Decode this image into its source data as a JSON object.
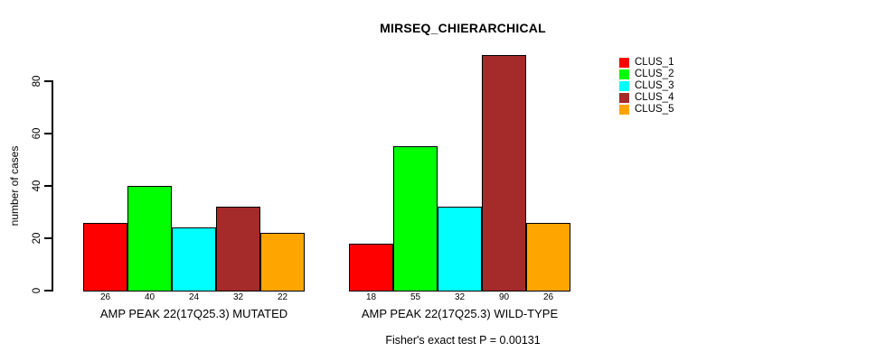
{
  "title": "MIRSEQ_CHIERARCHICAL",
  "footer": "Fisher's exact test P = 0.00131",
  "chart_data": {
    "type": "bar",
    "title": "MIRSEQ_CHIERARCHICAL",
    "xlabel": "",
    "ylabel": "number of cases",
    "ylim": [
      0,
      90
    ],
    "yticks": [
      0,
      20,
      40,
      60,
      80
    ],
    "grid": false,
    "legend_position": "right-outside",
    "bar_value_labels_shown": true,
    "categories": [
      "AMP PEAK 22(17Q25.3) MUTATED",
      "AMP PEAK 22(17Q25.3) WILD-TYPE"
    ],
    "series": [
      {
        "name": "CLUS_1",
        "color": "#FF0000",
        "values": [
          26,
          18
        ]
      },
      {
        "name": "CLUS_2",
        "color": "#00FF00",
        "values": [
          40,
          55
        ]
      },
      {
        "name": "CLUS_3",
        "color": "#00FFFF",
        "values": [
          24,
          32
        ]
      },
      {
        "name": "CLUS_4",
        "color": "#A52A2A",
        "values": [
          32,
          90
        ]
      },
      {
        "name": "CLUS_5",
        "color": "#FFA500",
        "values": [
          22,
          26
        ]
      }
    ],
    "annotation": "Fisher's exact test P = 0.00131"
  }
}
